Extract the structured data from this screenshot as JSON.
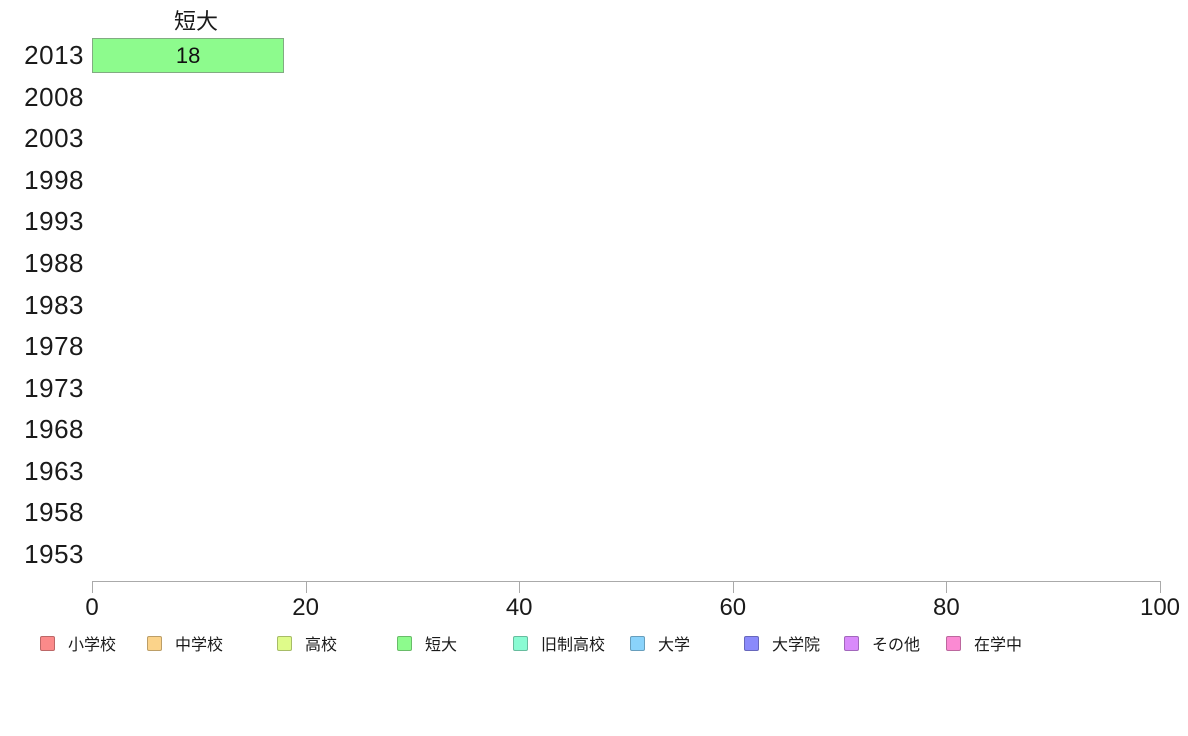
{
  "chart_data": {
    "type": "bar",
    "orientation": "horizontal",
    "title": "短大",
    "categories": [
      "2013",
      "2008",
      "2003",
      "1998",
      "1993",
      "1988",
      "1983",
      "1978",
      "1973",
      "1968",
      "1963",
      "1958",
      "1953"
    ],
    "series": [
      {
        "name": "短大",
        "color": "#8dfb8d",
        "values": [
          18,
          null,
          null,
          null,
          null,
          null,
          null,
          null,
          null,
          null,
          null,
          null,
          null
        ]
      }
    ],
    "bar_label": "18",
    "xlabel": "",
    "ylabel": "",
    "xlim": [
      0,
      100
    ],
    "x_ticks": [
      0,
      20,
      40,
      60,
      80,
      100
    ],
    "grid": false,
    "legend_position": "bottom"
  },
  "legend": {
    "items": [
      {
        "label": "小学校",
        "color": "#fb8a8a"
      },
      {
        "label": "中学校",
        "color": "#fbd38a"
      },
      {
        "label": "高校",
        "color": "#dffb8a"
      },
      {
        "label": "短大",
        "color": "#8dfb8d"
      },
      {
        "label": "旧制高校",
        "color": "#8afbd3"
      },
      {
        "label": "大学",
        "color": "#8ad3fb"
      },
      {
        "label": "大学院",
        "color": "#8a8afb"
      },
      {
        "label": "その他",
        "color": "#d98afb"
      },
      {
        "label": "在学中",
        "color": "#fb8ad3"
      }
    ]
  },
  "colors": {
    "bar_fill": "#8dfb8d",
    "bar_border": "#82ab82",
    "axis": "#aaaaaa",
    "text": "#1a1a1a"
  }
}
